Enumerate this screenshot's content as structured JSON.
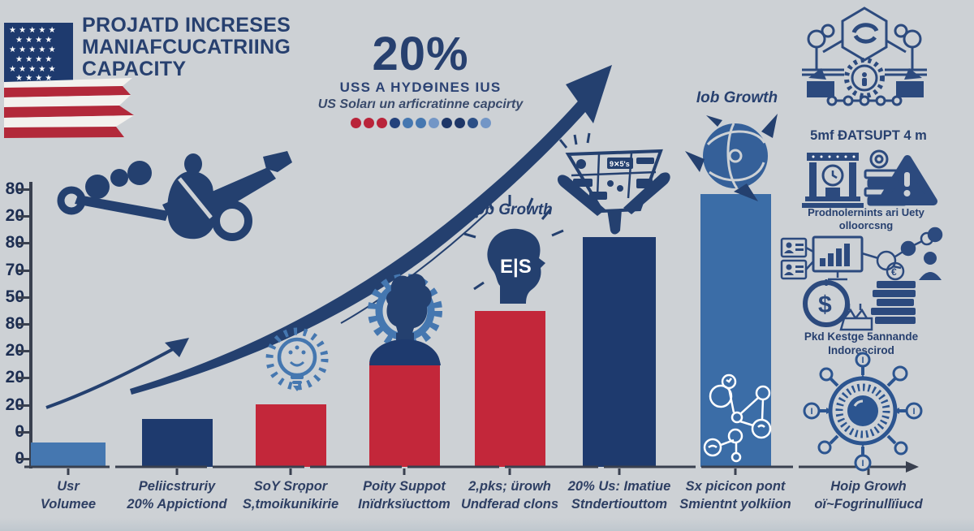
{
  "colors": {
    "background": "#cdd1d5",
    "navy": "#24406f",
    "bar_navy": "#1e3a6e",
    "red": "#c3273a",
    "steel_blue": "#4577b0",
    "bar7_blue": "#3b6da7",
    "axis": "#39404f"
  },
  "header": {
    "title_line1": "PROJATD INCRESES",
    "title_line2": "MANIAFCUCATRIING",
    "title_line3": "CAPACITY"
  },
  "hero": {
    "percent": "20%",
    "subtitle_bold": "USS A HYDƟINES IUS",
    "subtitle_italic": "US Soları un arficratinne capcirty",
    "dot_colors": [
      "#b9243a",
      "#b9243a",
      "#b9243a",
      "#24427c",
      "#4577b0",
      "#4577b0",
      "#7396c6",
      "#1e3667",
      "#1e3667",
      "#2c4f86",
      "#7396c6"
    ]
  },
  "annotations": {
    "job_growth_mid": "Job Growth",
    "job_growth_right": "Iob Growth"
  },
  "chart_data": {
    "type": "bar",
    "title": "PROJATD INCRESES MANIAFCUCATRIING CAPACITY",
    "xlabel": "",
    "ylabel": "",
    "ylim": [
      0,
      100
    ],
    "grid": false,
    "legend": null,
    "y_tick_labels": [
      "80",
      "20",
      "80",
      "70",
      "50",
      "80",
      "20",
      "20",
      "20",
      "0",
      "0"
    ],
    "categories": [
      [
        "Usr",
        "Volumee"
      ],
      [
        "Peliicstruriy",
        "20% Appictiond"
      ],
      [
        "SoY Srọpor",
        "S,tmoikunikirie"
      ],
      [
        "Poity Suppot",
        "Inïdrksïucttom"
      ],
      [
        "2,pks; ürowh",
        "Undferad clons"
      ],
      [
        "20% Us: Imatiue",
        "Stndertiouttom"
      ],
      [
        "Sx picicon pont",
        "Smientnt yolkiion"
      ],
      [
        "Hoip Growh",
        "oï~Fogrinullïiucd"
      ]
    ],
    "values": [
      8.6,
      17,
      22,
      45,
      55,
      81,
      96,
      0
    ],
    "bar_colors": [
      "#4577b0",
      "#1e3a6e",
      "#c3273a",
      "#c3273a",
      "#c3273a",
      "#1e3a6e",
      "#3b6da7",
      null
    ],
    "bar_caps": [
      false,
      false,
      false,
      true,
      false,
      false,
      false,
      false
    ]
  },
  "sidebar": {
    "caption_top": "5mf ÐATSUPT 4 m",
    "caption_mid_line1": "Prodnolernints ari Uety",
    "caption_mid_line2": "olloorcsng",
    "caption_low_line1": "Pkd Kestge 5annande",
    "caption_low_line2": "Indorescirod"
  }
}
